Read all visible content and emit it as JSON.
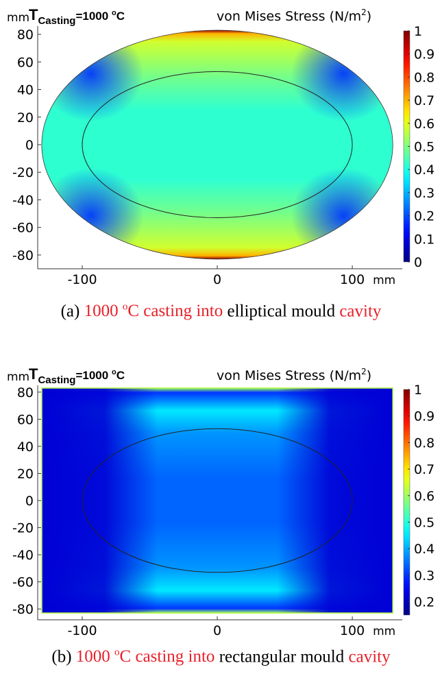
{
  "chart_data": [
    {
      "type": "heatmap",
      "panel_caption": {
        "label": "(a)",
        "temperature": "1000",
        "unit_sup": "o",
        "unit_main": "C",
        "highlight_1": "casting into",
        "shape": "elliptical mould",
        "highlight_2": "cavity"
      },
      "quantity_title": "von Mises Stress (N/m",
      "quantity_title_sup": "2",
      "quantity_title_close": ")",
      "casting_label": {
        "symbol": "T",
        "subscript": "Casting",
        "value": "=1000 ",
        "unit_sup": "o",
        "unit": "C"
      },
      "axis_unit": "mm",
      "x_unit": "mm",
      "x_ticks": [
        -100,
        0,
        100
      ],
      "y_ticks": [
        80,
        60,
        40,
        20,
        0,
        -20,
        -40,
        -60,
        -80
      ],
      "xlim": [
        -133,
        137
      ],
      "ylim": [
        -90,
        86
      ],
      "colorbar": {
        "ticks": [
          "1",
          "0.9",
          "0.8",
          "0.7",
          "0.6",
          "0.5",
          "0.4",
          "0.3",
          "0.2",
          "0.1",
          "0"
        ],
        "min": 0,
        "max": 1,
        "colormap": "jet"
      },
      "domain_shape": "ellipse",
      "outer_semi_axes_mm": [
        130,
        83
      ],
      "inner_boundary_semi_axes_mm": [
        100,
        53
      ],
      "values": {
        "centre": 0.42,
        "top_bottom_bands": 0.58,
        "outer_edge_top_bottom": 0.98,
        "left_right_middle": 0.42,
        "corners": 0.18
      }
    },
    {
      "type": "heatmap",
      "panel_caption": {
        "label": "(b)",
        "temperature": "1000",
        "unit_sup": "o",
        "unit_main": "C",
        "highlight_1": "casting into",
        "shape": "rectangular mould",
        "highlight_2": "cavity"
      },
      "quantity_title": "von Mises Stress (N/m",
      "quantity_title_sup": "2",
      "quantity_title_close": ")",
      "casting_label": {
        "symbol": "T",
        "subscript": "Casting",
        "value": "=1000 ",
        "unit_sup": "o",
        "unit": "C"
      },
      "axis_unit": "mm",
      "x_unit": "mm",
      "x_ticks": [
        -100,
        0,
        100
      ],
      "y_ticks": [
        80,
        60,
        40,
        20,
        0,
        -20,
        -40,
        -60,
        -80
      ],
      "xlim": [
        -133,
        137
      ],
      "ylim": [
        -88,
        85
      ],
      "colorbar": {
        "ticks": [
          "1",
          "0.9",
          "0.8",
          "0.7",
          "0.6",
          "0.5",
          "0.4",
          "0.3",
          "0.2"
        ],
        "min": 0.15,
        "max": 1,
        "colormap": "jet"
      },
      "domain_shape": "rectangle",
      "outer_extent_mm": [
        [
          -130,
          130
        ],
        [
          -83,
          83
        ]
      ],
      "inner_boundary_semi_axes_mm": [
        100,
        53
      ],
      "values": {
        "centre": 0.34,
        "top_bottom_bands": 0.45,
        "outer_edge_top_bottom": 0.6,
        "left_right_strips": 0.22,
        "corners": 0.2
      }
    }
  ]
}
